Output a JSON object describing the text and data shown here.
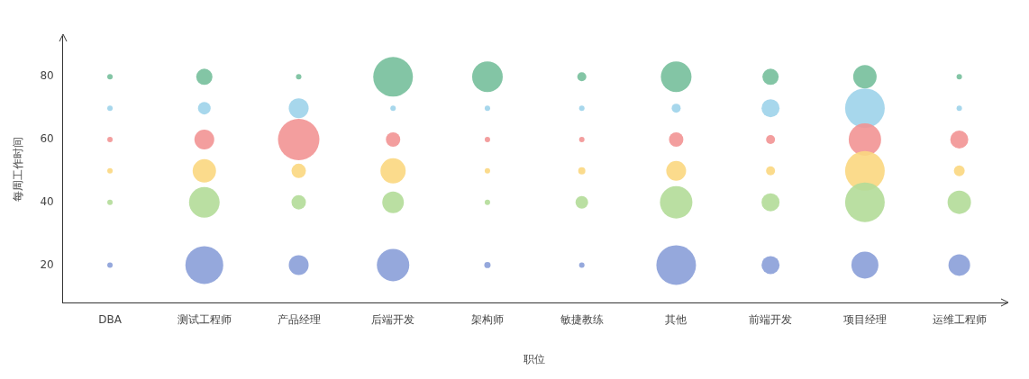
{
  "chart_data": {
    "type": "bubble",
    "xlabel": "职位",
    "ylabel": "每周工作时间",
    "categories": [
      "DBA",
      "测试工程师",
      "产品经理",
      "后端开发",
      "架构师",
      "敏捷教练",
      "其他",
      "前端开发",
      "项目经理",
      "运维工程师"
    ],
    "series": [
      {
        "color": "#8a9fd8",
        "values": [
          20,
          20,
          20,
          20,
          20,
          20,
          20,
          20,
          20,
          20
        ],
        "sizes": [
          0.017,
          0.834,
          0.229,
          0.612,
          0.023,
          0.017,
          0.915,
          0.189,
          0.425,
          0.272
        ]
      },
      {
        "color": "#b3dc98",
        "values": [
          40,
          40,
          40,
          40,
          40,
          40,
          40,
          40,
          40,
          40
        ],
        "sizes": [
          0.017,
          0.546,
          0.121,
          0.272,
          0.017,
          0.093,
          0.612,
          0.189,
          0.915,
          0.319
        ]
      },
      {
        "color": "#fbd77f",
        "values": [
          50,
          50,
          50,
          50,
          50,
          50,
          50,
          50,
          50,
          50
        ],
        "sizes": [
          0.017,
          0.319,
          0.121,
          0.371,
          0.017,
          0.03,
          0.229,
          0.047,
          0.915,
          0.068
        ]
      },
      {
        "color": "#f29493",
        "values": [
          60,
          60,
          60,
          60,
          60,
          60,
          60,
          60,
          60,
          60
        ],
        "sizes": [
          0.017,
          0.229,
          1,
          0.121,
          0.017,
          0.017,
          0.121,
          0.047,
          0.612,
          0.189
        ]
      },
      {
        "color": "#9dd3ea",
        "values": [
          70,
          70,
          70,
          70,
          70,
          70,
          70,
          70,
          70,
          70
        ],
        "sizes": [
          0.017,
          0.093,
          0.229,
          0.017,
          0.017,
          0.017,
          0.047,
          0.189,
          0.915,
          0.017
        ]
      },
      {
        "color": "#75bf9b",
        "values": [
          80,
          80,
          80,
          80,
          80,
          80,
          80,
          80,
          80,
          80
        ],
        "sizes": [
          0.017,
          0.153,
          0.017,
          0.915,
          0.546,
          0.047,
          0.546,
          0.153,
          0.319,
          0.017
        ]
      }
    ],
    "relative": false,
    "ylim": [
      8,
      93
    ],
    "yticks": [
      20,
      40,
      60,
      80
    ],
    "grid": false,
    "legend": false
  }
}
